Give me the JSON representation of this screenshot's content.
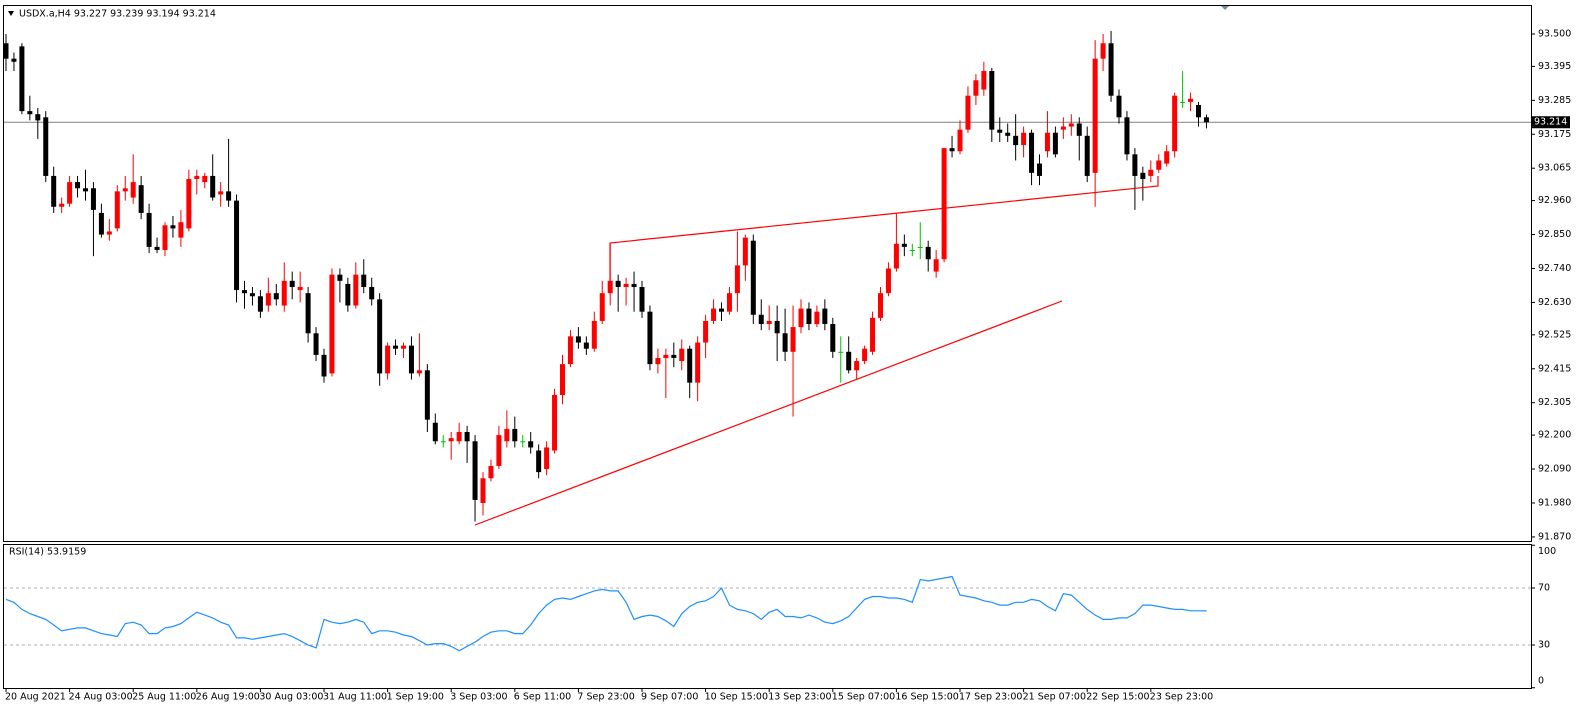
{
  "chart_data": {
    "type": "candlestick",
    "title": "USDX.a,H4  93.227 93.239 93.194 93.214",
    "up_color": "#ff0000",
    "down_color": "#000000",
    "doji_color": "#00c000",
    "line_color": "#808080",
    "ylim": [
      91.86,
      93.594
    ],
    "yticks": [
      {
        "value": 93.5,
        "label": "93.500"
      },
      {
        "value": 93.395,
        "label": "93.395"
      },
      {
        "value": 93.285,
        "label": "93.285"
      },
      {
        "value": 93.175,
        "label": "93.175"
      },
      {
        "value": 93.065,
        "label": "93.065"
      },
      {
        "value": 92.96,
        "label": "92.960"
      },
      {
        "value": 92.85,
        "label": "92.850"
      },
      {
        "value": 92.74,
        "label": "92.740"
      },
      {
        "value": 92.63,
        "label": "92.630"
      },
      {
        "value": 92.525,
        "label": "92.525"
      },
      {
        "value": 92.415,
        "label": "92.415"
      },
      {
        "value": 92.305,
        "label": "92.305"
      },
      {
        "value": 92.2,
        "label": "92.200"
      },
      {
        "value": 92.09,
        "label": "92.090"
      },
      {
        "value": 91.98,
        "label": "91.980"
      },
      {
        "value": 91.87,
        "label": "91.870"
      }
    ],
    "current_price": {
      "value": 93.214,
      "label": "93.214"
    },
    "categories": [
      "20 Aug 2021",
      null,
      null,
      null,
      null,
      null,
      null,
      null,
      "24 Aug 03:00",
      null,
      null,
      null,
      null,
      null,
      null,
      null,
      "25 Aug 11:00",
      null,
      null,
      null,
      null,
      null,
      null,
      null,
      "26 Aug 19:00",
      null,
      null,
      null,
      null,
      null,
      null,
      null,
      "30 Aug 03:00",
      null,
      null,
      null,
      null,
      null,
      null,
      null,
      "31 Aug 11:00",
      null,
      null,
      null,
      null,
      null,
      null,
      null,
      "1 Sep 19:00",
      null,
      null,
      null,
      null,
      null,
      null,
      null,
      "3 Sep 03:00",
      null,
      null,
      null,
      null,
      null,
      null,
      null,
      "6 Sep 11:00",
      null,
      null,
      null,
      null,
      null,
      null,
      null,
      "7 Sep 23:00",
      null,
      null,
      null,
      null,
      null,
      null,
      null,
      "9 Sep 07:00",
      null,
      null,
      null,
      null,
      null,
      null,
      null,
      "10 Sep 15:00",
      null,
      null,
      null,
      null,
      null,
      null,
      null,
      "13 Sep 23:00",
      null,
      null,
      null,
      null,
      null,
      null,
      null,
      "15 Sep 07:00",
      null,
      null,
      null,
      null,
      null,
      null,
      null,
      "16 Sep 15:00",
      null,
      null,
      null,
      null,
      null,
      null,
      null,
      "17 Sep 23:00",
      null,
      null,
      null,
      null,
      null,
      null,
      null,
      "21 Sep 07:00",
      null,
      null,
      null,
      null,
      null,
      null,
      null,
      "22 Sep 15:00",
      null,
      null,
      null,
      null,
      null,
      null,
      null,
      "23 Sep 23:00",
      null,
      null,
      null,
      null,
      null,
      null,
      null
    ],
    "candles": [
      [
        93.47,
        93.5,
        93.38,
        93.42
      ],
      [
        93.42,
        93.44,
        93.38,
        93.41
      ],
      [
        93.46,
        93.47,
        93.24,
        93.25
      ],
      [
        93.25,
        93.3,
        93.22,
        93.24
      ],
      [
        93.24,
        93.26,
        93.16,
        93.22
      ],
      [
        93.23,
        93.25,
        93.02,
        93.04
      ],
      [
        93.04,
        93.07,
        92.92,
        92.94
      ],
      [
        92.94,
        92.97,
        92.92,
        92.95
      ],
      [
        92.95,
        93.04,
        92.94,
        93.02
      ],
      [
        93.02,
        93.04,
        92.97,
        93.0
      ],
      [
        93.0,
        93.06,
        92.96,
        92.99
      ],
      [
        93.0,
        93.02,
        92.78,
        92.93
      ],
      [
        92.92,
        92.95,
        92.84,
        92.85
      ],
      [
        92.85,
        92.9,
        92.83,
        92.86
      ],
      [
        92.87,
        93.01,
        92.86,
        92.99
      ],
      [
        92.99,
        93.04,
        92.96,
        93.0
      ],
      [
        92.97,
        93.11,
        92.95,
        93.02
      ],
      [
        93.01,
        93.04,
        92.9,
        92.92
      ],
      [
        92.92,
        92.95,
        92.79,
        92.81
      ],
      [
        92.81,
        92.84,
        92.79,
        92.8
      ],
      [
        92.8,
        92.89,
        92.78,
        92.88
      ],
      [
        92.88,
        92.91,
        92.84,
        92.87
      ],
      [
        92.84,
        92.93,
        92.81,
        92.89
      ],
      [
        92.87,
        93.06,
        92.86,
        93.03
      ],
      [
        93.03,
        93.06,
        92.98,
        93.04
      ],
      [
        93.02,
        93.05,
        93.0,
        93.04
      ],
      [
        93.04,
        93.11,
        92.96,
        92.97
      ],
      [
        92.98,
        93.02,
        92.94,
        92.99
      ],
      [
        92.99,
        93.16,
        92.94,
        92.96
      ],
      [
        92.96,
        92.98,
        92.63,
        92.67
      ],
      [
        92.67,
        92.7,
        92.61,
        92.66
      ],
      [
        92.66,
        92.68,
        92.62,
        92.65
      ],
      [
        92.65,
        92.67,
        92.58,
        92.6
      ],
      [
        92.62,
        92.71,
        92.6,
        92.66
      ],
      [
        92.66,
        92.69,
        92.62,
        92.64
      ],
      [
        92.62,
        92.76,
        92.6,
        92.7
      ],
      [
        92.7,
        92.73,
        92.64,
        92.68
      ],
      [
        92.67,
        92.73,
        92.63,
        92.68
      ],
      [
        92.66,
        92.68,
        92.5,
        92.53
      ],
      [
        92.53,
        92.55,
        92.44,
        92.46
      ],
      [
        92.46,
        92.48,
        92.37,
        92.39
      ],
      [
        92.4,
        92.74,
        92.39,
        92.72
      ],
      [
        92.72,
        92.74,
        92.63,
        92.7
      ],
      [
        92.69,
        92.71,
        92.6,
        92.62
      ],
      [
        92.62,
        92.76,
        92.61,
        92.72
      ],
      [
        92.72,
        92.77,
        92.66,
        92.68
      ],
      [
        92.68,
        92.71,
        92.62,
        92.64
      ],
      [
        92.64,
        92.66,
        92.36,
        92.4
      ],
      [
        92.4,
        92.5,
        92.38,
        92.49
      ],
      [
        92.49,
        92.51,
        92.46,
        92.48
      ],
      [
        92.48,
        92.5,
        92.45,
        92.49
      ],
      [
        92.49,
        92.52,
        92.38,
        92.4
      ],
      [
        92.4,
        92.53,
        92.39,
        92.41
      ],
      [
        92.41,
        92.43,
        92.21,
        92.25
      ],
      [
        92.24,
        92.27,
        92.17,
        92.18
      ],
      [
        92.18,
        92.2,
        92.16,
        92.18
      ],
      [
        92.18,
        92.21,
        92.12,
        92.19
      ],
      [
        92.18,
        92.24,
        92.17,
        92.21
      ],
      [
        92.21,
        92.23,
        92.11,
        92.18
      ],
      [
        92.18,
        92.2,
        91.92,
        91.99
      ],
      [
        91.98,
        92.08,
        91.94,
        92.06
      ],
      [
        92.06,
        92.12,
        92.05,
        92.1
      ],
      [
        92.1,
        92.23,
        92.09,
        92.2
      ],
      [
        92.18,
        92.28,
        92.16,
        92.22
      ],
      [
        92.22,
        92.26,
        92.16,
        92.18
      ],
      [
        92.18,
        92.2,
        92.16,
        92.18
      ],
      [
        92.18,
        92.21,
        92.14,
        92.16
      ],
      [
        92.15,
        92.17,
        92.06,
        92.08
      ],
      [
        92.09,
        92.18,
        92.07,
        92.16
      ],
      [
        92.15,
        92.35,
        92.14,
        92.33
      ],
      [
        92.33,
        92.46,
        92.3,
        92.43
      ],
      [
        92.43,
        92.54,
        92.42,
        92.52
      ],
      [
        92.52,
        92.55,
        92.48,
        92.5
      ],
      [
        92.5,
        92.52,
        92.46,
        92.48
      ],
      [
        92.48,
        92.6,
        92.47,
        92.57
      ],
      [
        92.57,
        92.7,
        92.56,
        92.66
      ],
      [
        92.66,
        92.82,
        92.62,
        92.7
      ],
      [
        92.7,
        92.72,
        92.6,
        92.68
      ],
      [
        92.68,
        92.71,
        92.62,
        92.69
      ],
      [
        92.69,
        92.73,
        92.6,
        92.68
      ],
      [
        92.68,
        92.7,
        92.58,
        92.6
      ],
      [
        92.6,
        92.62,
        92.41,
        92.43
      ],
      [
        92.43,
        92.48,
        92.4,
        92.45
      ],
      [
        92.45,
        92.48,
        92.32,
        92.46
      ],
      [
        92.46,
        92.5,
        92.42,
        92.45
      ],
      [
        92.44,
        92.51,
        92.41,
        92.48
      ],
      [
        92.48,
        92.49,
        92.32,
        92.37
      ],
      [
        92.37,
        92.52,
        92.31,
        92.5
      ],
      [
        92.5,
        92.59,
        92.45,
        92.57
      ],
      [
        92.57,
        92.64,
        92.56,
        92.61
      ],
      [
        92.61,
        92.63,
        92.57,
        92.6
      ],
      [
        92.6,
        92.68,
        92.59,
        92.66
      ],
      [
        92.66,
        92.86,
        92.6,
        92.75
      ],
      [
        92.75,
        92.85,
        92.7,
        92.84
      ],
      [
        92.83,
        92.85,
        92.56,
        92.59
      ],
      [
        92.59,
        92.64,
        92.54,
        92.56
      ],
      [
        92.56,
        92.62,
        92.54,
        92.57
      ],
      [
        92.57,
        92.62,
        92.44,
        92.53
      ],
      [
        92.53,
        92.61,
        92.44,
        92.47
      ],
      [
        92.47,
        92.62,
        92.26,
        92.55
      ],
      [
        92.55,
        92.64,
        92.53,
        92.61
      ],
      [
        92.61,
        92.63,
        92.54,
        92.56
      ],
      [
        92.56,
        92.62,
        92.55,
        92.6
      ],
      [
        92.61,
        92.64,
        92.54,
        92.56
      ],
      [
        92.56,
        92.58,
        92.45,
        92.47
      ],
      [
        92.47,
        92.52,
        92.37,
        92.47
      ],
      [
        92.47,
        92.52,
        92.4,
        92.41
      ],
      [
        92.41,
        92.45,
        92.38,
        92.44
      ],
      [
        92.44,
        92.49,
        92.43,
        92.48
      ],
      [
        92.47,
        92.6,
        92.46,
        92.58
      ],
      [
        92.58,
        92.68,
        92.57,
        92.66
      ],
      [
        92.66,
        92.76,
        92.65,
        92.74
      ],
      [
        92.74,
        92.92,
        92.73,
        92.82
      ],
      [
        92.82,
        92.85,
        92.78,
        92.81
      ],
      [
        92.8,
        92.82,
        92.78,
        92.8
      ],
      [
        92.81,
        92.89,
        92.77,
        92.81
      ],
      [
        92.81,
        92.83,
        92.73,
        92.77
      ],
      [
        92.73,
        92.8,
        92.71,
        92.77
      ],
      [
        92.77,
        93.13,
        92.76,
        93.13
      ],
      [
        93.13,
        93.17,
        93.1,
        93.12
      ],
      [
        93.12,
        93.22,
        93.11,
        93.19
      ],
      [
        93.19,
        93.33,
        93.18,
        93.3
      ],
      [
        93.3,
        93.37,
        93.27,
        93.35
      ],
      [
        93.32,
        93.41,
        93.3,
        93.38
      ],
      [
        93.38,
        93.39,
        93.15,
        93.19
      ],
      [
        93.19,
        93.23,
        93.15,
        93.18
      ],
      [
        93.18,
        93.21,
        93.15,
        93.17
      ],
      [
        93.17,
        93.24,
        93.09,
        93.14
      ],
      [
        93.14,
        93.2,
        93.1,
        93.18
      ],
      [
        93.18,
        93.19,
        93.01,
        93.05
      ],
      [
        93.08,
        93.11,
        93.01,
        93.04
      ],
      [
        93.12,
        93.25,
        93.1,
        93.18
      ],
      [
        93.18,
        93.2,
        93.1,
        93.11
      ],
      [
        93.19,
        93.23,
        93.16,
        93.2
      ],
      [
        93.2,
        93.24,
        93.17,
        93.21
      ],
      [
        93.21,
        93.23,
        93.09,
        93.17
      ],
      [
        93.17,
        93.2,
        93.02,
        93.04
      ],
      [
        93.05,
        93.48,
        92.94,
        93.42
      ],
      [
        93.42,
        93.5,
        93.38,
        93.47
      ],
      [
        93.47,
        93.51,
        93.28,
        93.3
      ],
      [
        93.3,
        93.32,
        93.21,
        93.23
      ],
      [
        93.23,
        93.25,
        93.09,
        93.11
      ],
      [
        93.11,
        93.13,
        92.93,
        93.04
      ],
      [
        93.05,
        93.07,
        92.96,
        93.03
      ],
      [
        93.04,
        93.09,
        93.02,
        93.06
      ],
      [
        93.06,
        93.11,
        93.05,
        93.09
      ],
      [
        93.08,
        93.14,
        93.07,
        93.12
      ],
      [
        93.12,
        93.31,
        93.1,
        93.3
      ],
      [
        93.28,
        93.38,
        93.26,
        93.28
      ],
      [
        93.28,
        93.31,
        93.25,
        93.29
      ],
      [
        93.27,
        93.28,
        93.2,
        93.23
      ],
      [
        93.23,
        93.239,
        93.194,
        93.214
      ]
    ],
    "rsi": {
      "name": "RSI(14) 53.9159",
      "color": "#1e90ff",
      "ylim": [
        0,
        100
      ],
      "yticks": [
        100,
        70,
        30,
        0
      ],
      "values": [
        62,
        60,
        55,
        52,
        50,
        48,
        44,
        40,
        41,
        42,
        42,
        40,
        38,
        37,
        36,
        45,
        46,
        44,
        38,
        38,
        42,
        43,
        45,
        49,
        53,
        51,
        49,
        46,
        44,
        35,
        35,
        34,
        35,
        36,
        37,
        38,
        36,
        33,
        30,
        28,
        48,
        46,
        45,
        46,
        48,
        46,
        38,
        40,
        40,
        39,
        37,
        36,
        33,
        30,
        31,
        31,
        29,
        26,
        29,
        32,
        36,
        39,
        40,
        40,
        38,
        38,
        44,
        52,
        58,
        62,
        63,
        62,
        64,
        66,
        68,
        69,
        68,
        68,
        60,
        48,
        50,
        51,
        50,
        47,
        43,
        52,
        57,
        60,
        61,
        64,
        70,
        58,
        55,
        54,
        52,
        48,
        53,
        55,
        50,
        50,
        49,
        51,
        49,
        46,
        45,
        47,
        50,
        56,
        62,
        64,
        64,
        63,
        63,
        62,
        60,
        76,
        75,
        76,
        77,
        78,
        65,
        64,
        63,
        61,
        60,
        58,
        58,
        60,
        60,
        62,
        61,
        57,
        54,
        66,
        65,
        60,
        55,
        51,
        48,
        48,
        49,
        49,
        52,
        58,
        58,
        57,
        56,
        55,
        55,
        54,
        54,
        53.9159
      ]
    }
  }
}
